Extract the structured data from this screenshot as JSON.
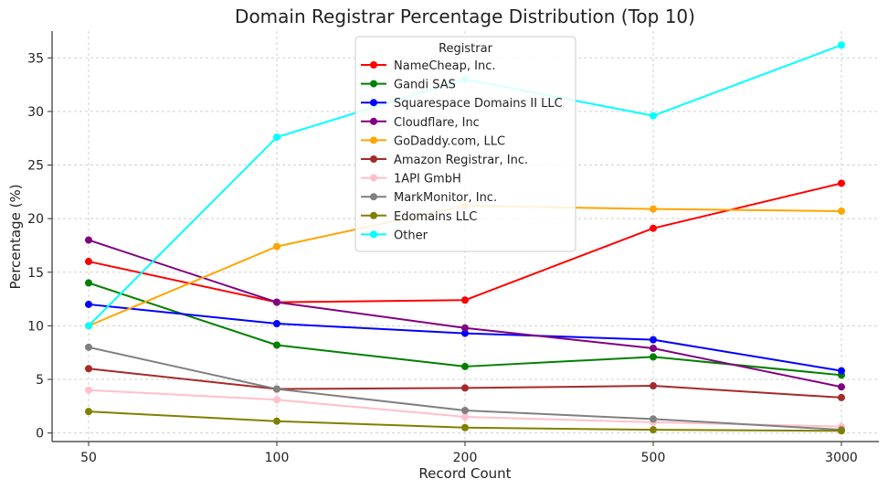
{
  "chart_data": {
    "type": "line",
    "title": "Domain Registrar Percentage Distribution (Top 10)",
    "xlabel": "Record Count",
    "ylabel": "Percentage (%)",
    "categories": [
      "50",
      "100",
      "200",
      "500",
      "3000"
    ],
    "ylim": [
      -0.8,
      37.5
    ],
    "yticks": [
      0,
      5,
      10,
      15,
      20,
      25,
      30,
      35
    ],
    "grid": true,
    "legend": {
      "title": "Registrar",
      "placement": "top-center"
    },
    "series": [
      {
        "name": "NameCheap, Inc.",
        "color": "#ff0000",
        "values": [
          16.0,
          12.2,
          12.4,
          19.1,
          23.3
        ]
      },
      {
        "name": "Gandi SAS",
        "color": "#008000",
        "values": [
          14.0,
          8.2,
          6.2,
          7.1,
          5.4
        ]
      },
      {
        "name": "Squarespace Domains II LLC",
        "color": "#0000ff",
        "values": [
          12.0,
          10.2,
          9.3,
          8.7,
          5.8
        ]
      },
      {
        "name": "Cloudflare, Inc",
        "color": "#800080",
        "values": [
          18.0,
          12.2,
          9.8,
          7.9,
          4.3
        ]
      },
      {
        "name": "GoDaddy.com, LLC",
        "color": "#ffa500",
        "values": [
          10.0,
          17.4,
          21.2,
          20.9,
          20.7
        ]
      },
      {
        "name": "Amazon Registrar, Inc.",
        "color": "#a52a2a",
        "values": [
          6.0,
          4.1,
          4.2,
          4.4,
          3.3
        ]
      },
      {
        "name": "1API GmbH",
        "color": "#ffc0cb",
        "values": [
          4.0,
          3.1,
          1.5,
          1.0,
          0.6
        ]
      },
      {
        "name": "MarkMonitor, Inc.",
        "color": "#808080",
        "values": [
          8.0,
          4.1,
          2.1,
          1.3,
          0.3
        ]
      },
      {
        "name": "Edomains LLC",
        "color": "#808000",
        "values": [
          2.0,
          1.1,
          0.5,
          0.3,
          0.2
        ]
      },
      {
        "name": "Other",
        "color": "#00ffff",
        "values": [
          10.0,
          27.6,
          33.0,
          29.6,
          36.2
        ]
      }
    ]
  }
}
